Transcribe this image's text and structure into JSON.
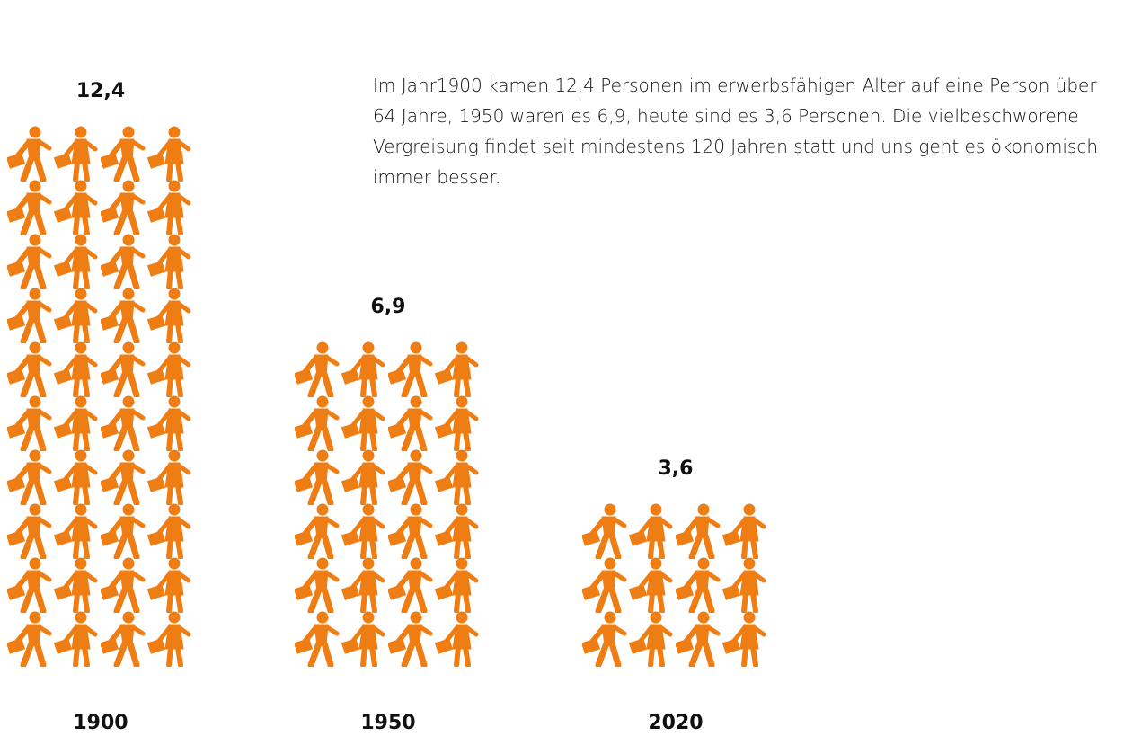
{
  "chart_data": {
    "type": "pictograph",
    "categories": [
      "1900",
      "1950",
      "2020"
    ],
    "values": [
      12.4,
      6.9,
      3.6
    ],
    "value_labels": [
      "12,4",
      "6,9",
      "3,6"
    ],
    "color": "#ee7d14",
    "annotation": "Im Jahr1900 kamen 12,4 Personen im erwerbsfähigen Alter auf eine Person über 64 Jahre, 1950 waren es 6,9, heute sind es 3,6 Personen. Die vielbeschworene Vergreisung findet seit mindestens 120 Jahren statt und uns geht es ökonomisch immer besser."
  }
}
